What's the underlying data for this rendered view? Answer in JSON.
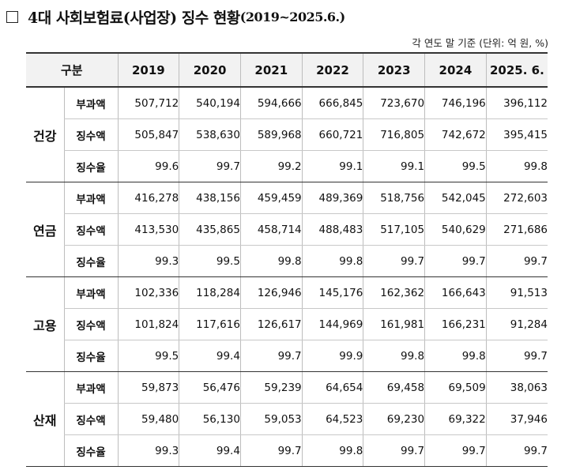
{
  "title": {
    "box": "□",
    "main": "4대 사회보험료(사업장) 징수 현황",
    "period": "(2019~2025.6.)"
  },
  "unit_note": "각 연도 말 기준 (단위: 억 원, %)",
  "table": {
    "header_label": "구분",
    "years": [
      "2019",
      "2020",
      "2021",
      "2022",
      "2023",
      "2024",
      "2025. 6."
    ],
    "groups": [
      {
        "name": "건강",
        "rows": [
          {
            "label": "부과액",
            "values": [
              "507,712",
              "540,194",
              "594,666",
              "666,845",
              "723,670",
              "746,196",
              "396,112"
            ]
          },
          {
            "label": "징수액",
            "values": [
              "505,847",
              "538,630",
              "589,968",
              "660,721",
              "716,805",
              "742,672",
              "395,415"
            ]
          },
          {
            "label": "징수율",
            "values": [
              "99.6",
              "99.7",
              "99.2",
              "99.1",
              "99.1",
              "99.5",
              "99.8"
            ]
          }
        ]
      },
      {
        "name": "연금",
        "rows": [
          {
            "label": "부과액",
            "values": [
              "416,278",
              "438,156",
              "459,459",
              "489,369",
              "518,756",
              "542,045",
              "272,603"
            ]
          },
          {
            "label": "징수액",
            "values": [
              "413,530",
              "435,865",
              "458,714",
              "488,483",
              "517,105",
              "540,629",
              "271,686"
            ]
          },
          {
            "label": "징수율",
            "values": [
              "99.3",
              "99.5",
              "99.8",
              "99.8",
              "99.7",
              "99.7",
              "99.7"
            ]
          }
        ]
      },
      {
        "name": "고용",
        "rows": [
          {
            "label": "부과액",
            "values": [
              "102,336",
              "118,284",
              "126,946",
              "145,176",
              "162,362",
              "166,643",
              "91,513"
            ]
          },
          {
            "label": "징수액",
            "values": [
              "101,824",
              "117,616",
              "126,617",
              "144,969",
              "161,981",
              "166,231",
              "91,284"
            ]
          },
          {
            "label": "징수율",
            "values": [
              "99.5",
              "99.4",
              "99.7",
              "99.9",
              "99.8",
              "99.8",
              "99.7"
            ]
          }
        ]
      },
      {
        "name": "산재",
        "rows": [
          {
            "label": "부과액",
            "values": [
              "59,873",
              "56,476",
              "59,239",
              "64,654",
              "69,458",
              "69,509",
              "38,063"
            ]
          },
          {
            "label": "징수액",
            "values": [
              "59,480",
              "56,130",
              "59,053",
              "64,523",
              "69,230",
              "69,322",
              "37,946"
            ]
          },
          {
            "label": "징수율",
            "values": [
              "99.3",
              "99.4",
              "99.7",
              "99.8",
              "99.7",
              "99.7",
              "99.7"
            ]
          }
        ]
      }
    ]
  }
}
